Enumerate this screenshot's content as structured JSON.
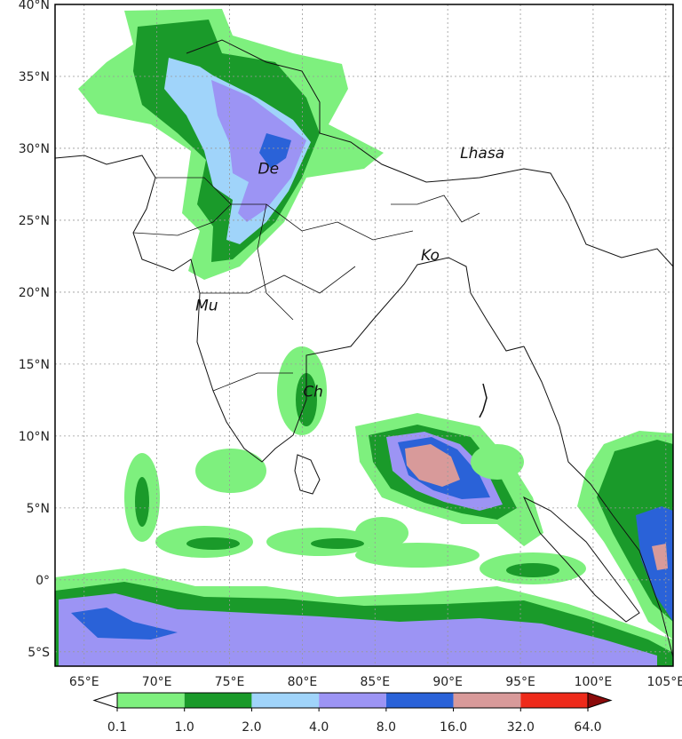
{
  "map": {
    "longitude_ticks": [
      "65°E",
      "70°E",
      "75°E",
      "80°E",
      "85°E",
      "90°E",
      "95°E",
      "100°E",
      "105°E"
    ],
    "latitude_ticks": [
      "40°N",
      "35°N",
      "30°N",
      "25°N",
      "20°N",
      "15°N",
      "10°N",
      "5°N",
      "0°",
      "5°S"
    ],
    "lon_range": [
      63,
      105.5
    ],
    "lat_range": [
      -6,
      40
    ],
    "cities": [
      {
        "label": "Lhasa",
        "lon": 91.1,
        "lat": 29.7
      },
      {
        "label": "De",
        "lon": 77.2,
        "lat": 28.6
      },
      {
        "label": "Ko",
        "lon": 88.4,
        "lat": 22.6
      },
      {
        "label": "Mu",
        "lon": 72.9,
        "lat": 19.1
      },
      {
        "label": "Ch",
        "lon": 80.3,
        "lat": 13.1
      }
    ]
  },
  "colorbar": {
    "levels": [
      "0.1",
      "1.0",
      "2.0",
      "4.0",
      "8.0",
      "16.0",
      "32.0",
      "64.0"
    ],
    "colors": [
      "#7ef07e",
      "#1a9a2a",
      "#a0d4fa",
      "#9c94f4",
      "#2a62d8",
      "#d89a9a",
      "#ee2a1a"
    ],
    "under_color": "#ffffff",
    "over_color": "#8b0a0a"
  }
}
